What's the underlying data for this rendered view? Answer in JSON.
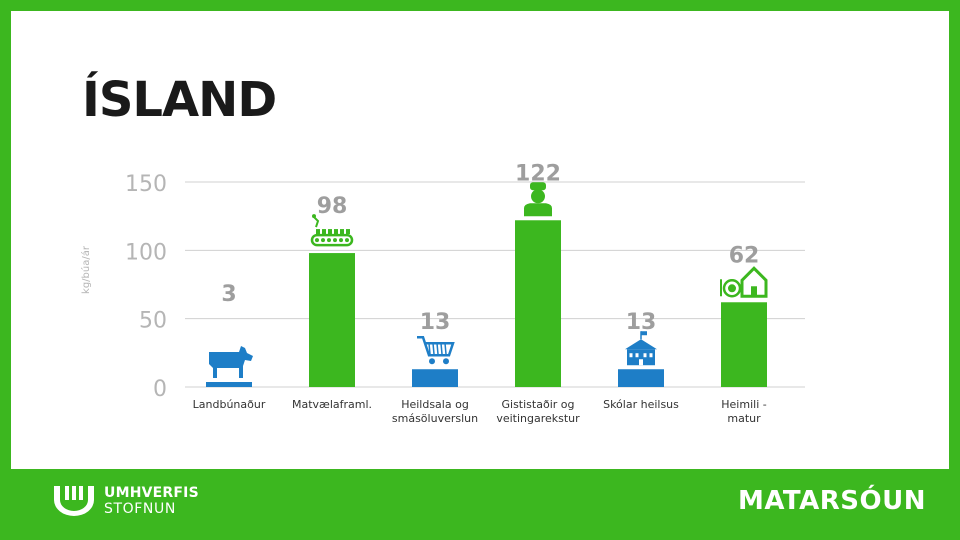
{
  "page_title": "ÍSLAND",
  "footer": {
    "logo_line1": "UMHVERFIS",
    "logo_line2": "STOFNUN",
    "section_title": "MATARSÓUN"
  },
  "colors": {
    "background": "#3cb71f",
    "bar_green": "#3cb71f",
    "bar_blue": "#1e7ec7",
    "icon_green": "#3cb71f",
    "icon_blue": "#1e7ec7",
    "grid": "#d0d0d0",
    "tick_label": "#b5b5b5",
    "value_label": "#9e9e9e"
  },
  "chart_data": {
    "type": "bar",
    "ylabel": "kg/búa/ár",
    "ylim": [
      0,
      150
    ],
    "yticks": [
      0,
      50,
      100,
      150
    ],
    "grid": true,
    "bars": [
      {
        "category": "Landbúnaður",
        "value": 3,
        "color": "blue",
        "icon": "cow-icon"
      },
      {
        "category": "Matvælaframl.",
        "value": 98,
        "color": "green",
        "icon": "factory-conveyor-icon"
      },
      {
        "category": "Heildsala og smásöluverslun",
        "value": 13,
        "color": "blue",
        "icon": "shopping-cart-icon"
      },
      {
        "category": "Gististaðir og veitingarekstur",
        "value": 122,
        "color": "green",
        "icon": "chef-icon"
      },
      {
        "category": "Skólar heilsus",
        "value": 13,
        "color": "blue",
        "icon": "school-building-icon"
      },
      {
        "category": "Heimili - matur",
        "value": 62,
        "color": "green",
        "icon": "home-plate-icon"
      }
    ]
  }
}
